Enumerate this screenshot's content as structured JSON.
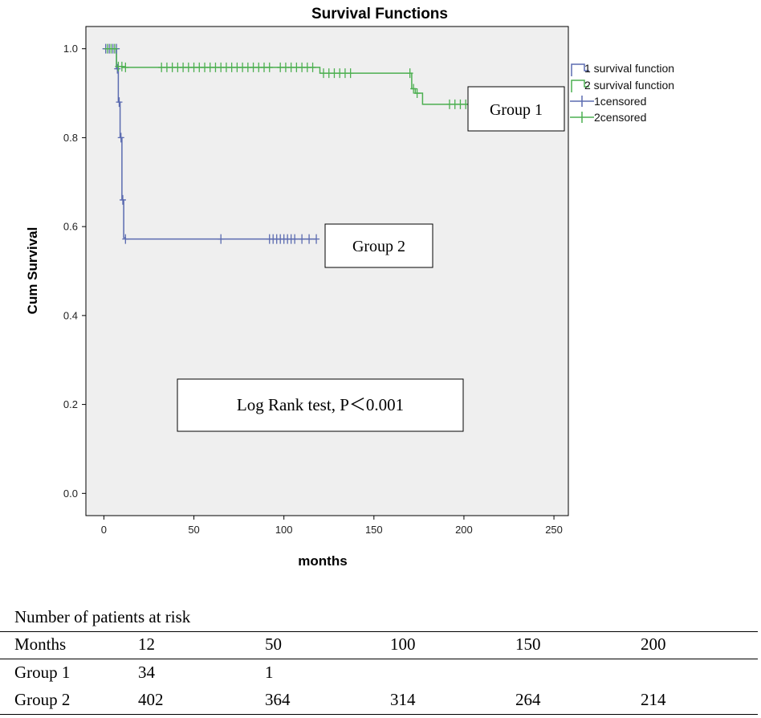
{
  "chart_data": {
    "type": "line",
    "title": "Survival Functions",
    "xlabel": "months",
    "ylabel": "Cum Survival",
    "xlim": [
      -10,
      258
    ],
    "ylim": [
      -0.05,
      1.05
    ],
    "xticks": [
      0,
      50,
      100,
      150,
      200,
      250
    ],
    "yticks": [
      0.0,
      0.2,
      0.4,
      0.6,
      0.8,
      1.0
    ],
    "xtick_labels": [
      "0",
      "50",
      "100",
      "150",
      "200",
      "250"
    ],
    "ytick_labels": [
      "0.0",
      "0.2",
      "0.4",
      "0.6",
      "0.8",
      "1.0"
    ],
    "grid": false,
    "legend_position": "right",
    "legend": [
      "1 survival function",
      "2 survival function",
      "1censored",
      "2censored"
    ],
    "series": [
      {
        "name": "1 survival function",
        "color": "#5b6bb0",
        "x": [
          0,
          7,
          7,
          8,
          8,
          9,
          9,
          10,
          10,
          11,
          11,
          12,
          12,
          118
        ],
        "y": [
          1.0,
          1.0,
          0.955,
          0.955,
          0.88,
          0.88,
          0.8,
          0.8,
          0.66,
          0.66,
          0.575,
          0.575,
          0.572,
          0.572
        ]
      },
      {
        "name": "2 survival function",
        "color": "#4caf50",
        "x": [
          0,
          7,
          7,
          10,
          10,
          120,
          120,
          140,
          140,
          171,
          171,
          173,
          173,
          177,
          177,
          205
        ],
        "y": [
          1.0,
          1.0,
          0.96,
          0.96,
          0.958,
          0.958,
          0.945,
          0.945,
          0.945,
          0.945,
          0.91,
          0.91,
          0.9,
          0.9,
          0.875,
          0.875
        ]
      }
    ],
    "censored": [
      {
        "name": "1censored",
        "color": "#5b6bb0",
        "x": [
          1,
          3,
          5,
          7,
          7.5,
          8.5,
          9.5,
          10.5,
          12,
          65,
          92,
          94,
          96,
          98,
          100,
          102,
          104,
          106,
          110,
          114,
          118
        ],
        "y": [
          1.0,
          1.0,
          1.0,
          1.0,
          0.955,
          0.88,
          0.8,
          0.66,
          0.572,
          0.572,
          0.572,
          0.572,
          0.572,
          0.572,
          0.572,
          0.572,
          0.572,
          0.572,
          0.572,
          0.572,
          0.572
        ]
      },
      {
        "name": "2censored",
        "color": "#4caf50",
        "x": [
          2,
          4,
          6,
          8,
          10,
          12,
          32,
          35,
          38,
          41,
          44,
          47,
          50,
          53,
          56,
          59,
          62,
          65,
          68,
          71,
          74,
          77,
          80,
          83,
          86,
          89,
          92,
          98,
          101,
          104,
          107,
          110,
          113,
          116,
          122,
          125,
          128,
          131,
          134,
          137,
          170,
          172,
          174,
          192,
          195,
          198,
          201,
          204
        ],
        "y": [
          1.0,
          1.0,
          1.0,
          0.96,
          0.96,
          0.958,
          0.958,
          0.958,
          0.958,
          0.958,
          0.958,
          0.958,
          0.958,
          0.958,
          0.958,
          0.958,
          0.958,
          0.958,
          0.958,
          0.958,
          0.958,
          0.958,
          0.958,
          0.958,
          0.958,
          0.958,
          0.958,
          0.958,
          0.958,
          0.958,
          0.958,
          0.958,
          0.958,
          0.958,
          0.945,
          0.945,
          0.945,
          0.945,
          0.945,
          0.945,
          0.945,
          0.91,
          0.9,
          0.875,
          0.875,
          0.875,
          0.875,
          0.875
        ]
      }
    ],
    "annotations": [
      {
        "id": "group1",
        "text": "Group 1"
      },
      {
        "id": "group2",
        "text": "Group 2"
      },
      {
        "id": "logrank",
        "text": "Log Rank test, P＜0.001"
      }
    ],
    "colors": {
      "plot_background": "#efefef",
      "group1_line": "#5b6bb0",
      "group2_line": "#4caf50"
    }
  },
  "risk_table": {
    "title": "Number of patients at risk",
    "header": [
      "Months",
      "12",
      "50",
      "100",
      "150",
      "200"
    ],
    "rows": [
      [
        "Group 1",
        "34",
        "1",
        "",
        "",
        ""
      ],
      [
        "Group 2",
        "402",
        "364",
        "314",
        "264",
        "214"
      ]
    ]
  }
}
